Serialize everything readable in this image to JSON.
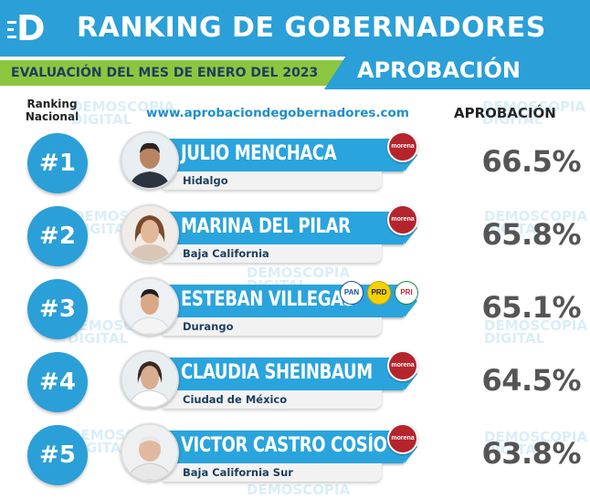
{
  "header": {
    "logo_letter": "D",
    "title": "RANKING DE GOBERNADORES",
    "subtitle": "EVALUACIÓN DEL MES DE ENERO DEL 2023",
    "tab": "APROBACIÓN",
    "brand_color": "#2a9fd8",
    "accent_color": "#8cc63f"
  },
  "columns": {
    "rank_label": "Ranking\nNacional",
    "website": "www.aprobaciondegobernadores.com",
    "approval_label": "APROBACIÓN"
  },
  "watermark": {
    "line1": "DEMOSCOPIA",
    "line2": "DIGITAL"
  },
  "rows": [
    {
      "rank": "#1",
      "name": "JULIO MENCHACA",
      "state": "Hidalgo",
      "approval": "66.5%",
      "parties": [
        "morena"
      ]
    },
    {
      "rank": "#2",
      "name": "MARINA DEL PILAR",
      "state": "Baja California",
      "approval": "65.8%",
      "parties": [
        "morena"
      ]
    },
    {
      "rank": "#3",
      "name": "ESTEBAN VILLEGAS",
      "state": "Durango",
      "approval": "65.1%",
      "parties": [
        "PAN",
        "PRD",
        "PRI"
      ]
    },
    {
      "rank": "#4",
      "name": "CLAUDIA SHEINBAUM",
      "state": "Ciudad de México",
      "approval": "64.5%",
      "parties": [
        "morena"
      ]
    },
    {
      "rank": "#5",
      "name": "VICTOR CASTRO COSÍO",
      "state": "Baja California Sur",
      "approval": "63.8%",
      "parties": [
        "morena"
      ]
    }
  ]
}
